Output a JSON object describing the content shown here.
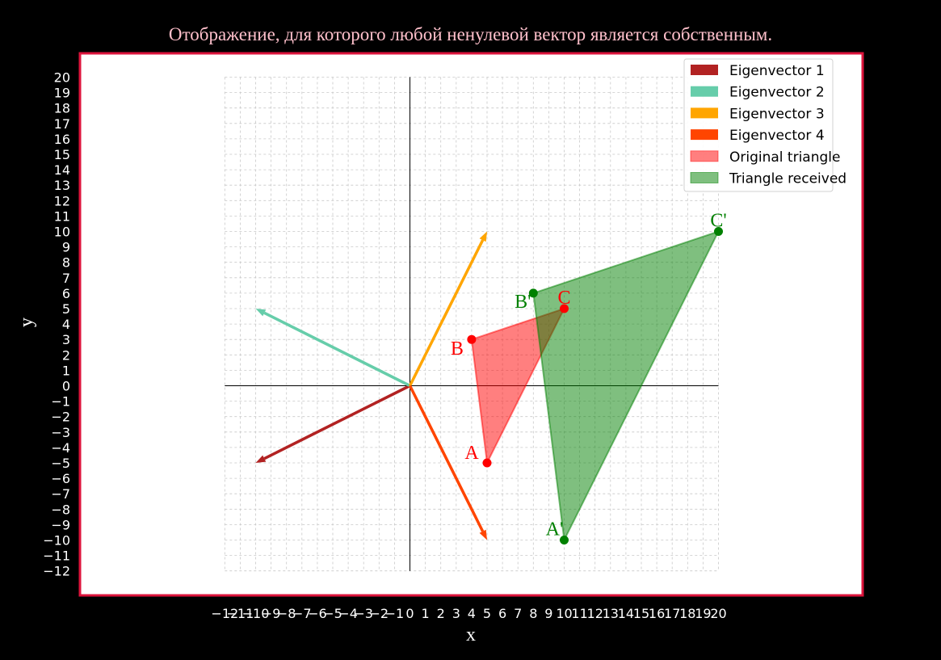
{
  "title": "Отображение, для которого любой ненулевой вектор является собственным.",
  "chart_data": {
    "type": "line",
    "title": "Отображение, для которого любой ненулевой вектор является собственным.",
    "xlabel": "x",
    "ylabel": "y",
    "xlim": [
      -12,
      20
    ],
    "ylim": [
      -12,
      20
    ],
    "x_ticks": [
      "−12",
      "−11",
      "−10",
      "−9",
      "−8",
      "−7",
      "−6",
      "−5",
      "−4",
      "−3",
      "−2",
      "−1",
      "0",
      "1",
      "2",
      "3",
      "4",
      "5",
      "6",
      "7",
      "8",
      "9",
      "10",
      "11",
      "12",
      "13",
      "14",
      "15",
      "16",
      "17",
      "18",
      "19",
      "20"
    ],
    "y_ticks": [
      "−12",
      "−11",
      "−10",
      "−9",
      "−8",
      "−7",
      "−6",
      "−5",
      "−4",
      "−3",
      "−2",
      "−1",
      "0",
      "1",
      "2",
      "3",
      "4",
      "5",
      "6",
      "7",
      "8",
      "9",
      "10",
      "11",
      "12",
      "13",
      "14",
      "15",
      "16",
      "17",
      "18",
      "19",
      "20"
    ],
    "grid": true,
    "legend_position": "top-right",
    "vectors": [
      {
        "name": "Eigenvector 1",
        "from": [
          0,
          0
        ],
        "to": [
          -10,
          -5
        ],
        "color": "#b22222"
      },
      {
        "name": "Eigenvector 2",
        "from": [
          0,
          0
        ],
        "to": [
          -10,
          5
        ],
        "color": "#66cdaa"
      },
      {
        "name": "Eigenvector 3",
        "from": [
          0,
          0
        ],
        "to": [
          5,
          10
        ],
        "color": "#ffa500"
      },
      {
        "name": "Eigenvector 4",
        "from": [
          0,
          0
        ],
        "to": [
          5,
          -10
        ],
        "color": "#ff4500"
      }
    ],
    "triangles": [
      {
        "name": "Original triangle",
        "color": "#ff0000",
        "points": [
          {
            "label": "A",
            "x": 5,
            "y": -5
          },
          {
            "label": "B",
            "x": 4,
            "y": 3
          },
          {
            "label": "C",
            "x": 10,
            "y": 5
          }
        ]
      },
      {
        "name": "Triangle received",
        "color": "#008000",
        "points": [
          {
            "label": "A'",
            "x": 10,
            "y": -10
          },
          {
            "label": "B'",
            "x": 8,
            "y": 6
          },
          {
            "label": "C'",
            "x": 20,
            "y": 10
          }
        ]
      }
    ],
    "frame_color": "#dc143c"
  }
}
